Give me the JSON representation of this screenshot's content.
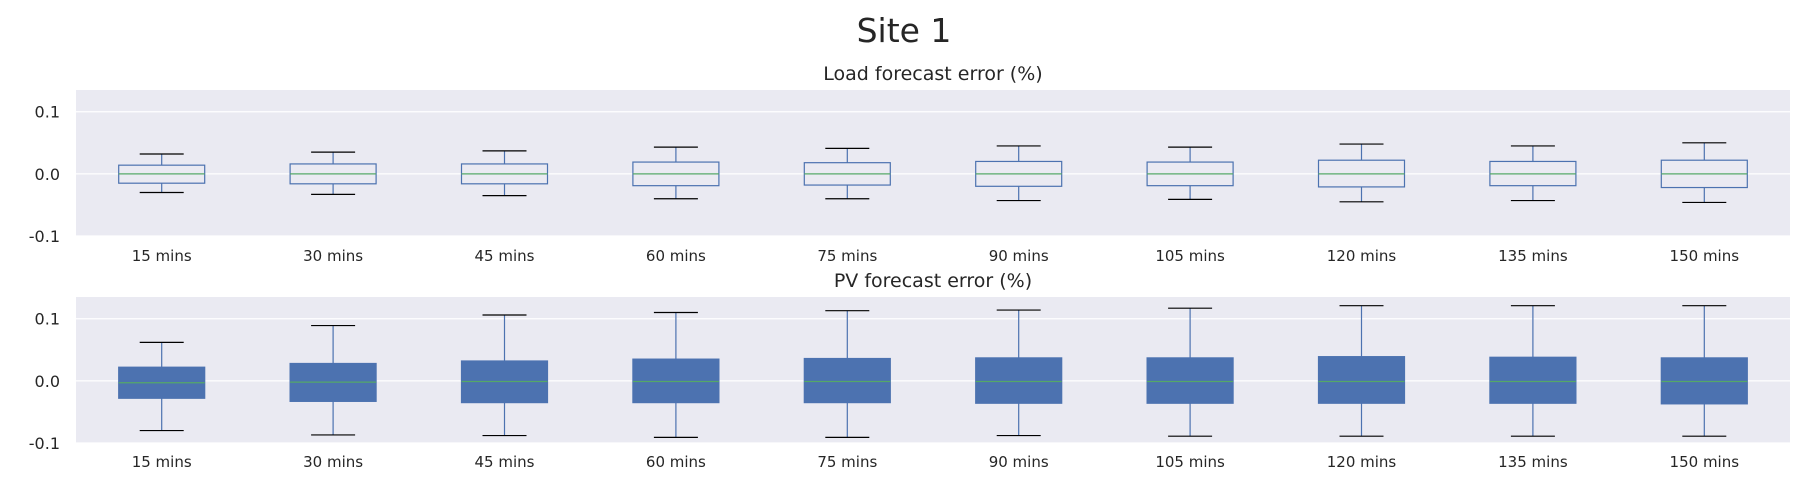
{
  "title": "Site 1",
  "colors": {
    "panel_bg": "#eaeaf2",
    "grid": "#ffffff",
    "box_edge": "#4c72b0",
    "box_fill": "#4c72b0",
    "median": "#55a868",
    "cap": "#000000"
  },
  "chart_data": [
    {
      "type": "box",
      "title": "Load forecast error (%)",
      "xlabel": "",
      "ylabel": "",
      "ylim": [
        -0.1,
        0.135
      ],
      "yticks": [
        "-0.1",
        "0.0",
        "0.1"
      ],
      "grid": true,
      "filled": false,
      "categories": [
        "15 mins",
        "30 mins",
        "45 mins",
        "60 mins",
        "75 mins",
        "90 mins",
        "105 mins",
        "120 mins",
        "135 mins",
        "150 mins"
      ],
      "boxes": [
        {
          "whisker_low": -0.03,
          "q1": -0.015,
          "median": 0.0,
          "q3": 0.014,
          "whisker_high": 0.032
        },
        {
          "whisker_low": -0.033,
          "q1": -0.016,
          "median": 0.0,
          "q3": 0.016,
          "whisker_high": 0.035
        },
        {
          "whisker_low": -0.035,
          "q1": -0.016,
          "median": 0.0,
          "q3": 0.016,
          "whisker_high": 0.037
        },
        {
          "whisker_low": -0.04,
          "q1": -0.019,
          "median": 0.0,
          "q3": 0.019,
          "whisker_high": 0.043
        },
        {
          "whisker_low": -0.04,
          "q1": -0.018,
          "median": 0.0,
          "q3": 0.018,
          "whisker_high": 0.041
        },
        {
          "whisker_low": -0.043,
          "q1": -0.02,
          "median": 0.0,
          "q3": 0.02,
          "whisker_high": 0.045
        },
        {
          "whisker_low": -0.041,
          "q1": -0.019,
          "median": 0.0,
          "q3": 0.019,
          "whisker_high": 0.043
        },
        {
          "whisker_low": -0.045,
          "q1": -0.021,
          "median": 0.0,
          "q3": 0.022,
          "whisker_high": 0.048
        },
        {
          "whisker_low": -0.043,
          "q1": -0.019,
          "median": 0.0,
          "q3": 0.02,
          "whisker_high": 0.045
        },
        {
          "whisker_low": -0.046,
          "q1": -0.022,
          "median": 0.0,
          "q3": 0.022,
          "whisker_high": 0.05
        }
      ]
    },
    {
      "type": "box",
      "title": "PV forecast error (%)",
      "xlabel": "",
      "ylabel": "",
      "ylim": [
        -0.1,
        0.135
      ],
      "yticks": [
        "-0.1",
        "0.0",
        "0.1"
      ],
      "grid": true,
      "filled": true,
      "categories": [
        "15 mins",
        "30 mins",
        "45 mins",
        "60 mins",
        "75 mins",
        "90 mins",
        "105 mins",
        "120 mins",
        "135 mins",
        "150 mins"
      ],
      "boxes": [
        {
          "whisker_low": -0.08,
          "q1": -0.028,
          "median": -0.003,
          "q3": 0.022,
          "whisker_high": 0.062
        },
        {
          "whisker_low": -0.087,
          "q1": -0.033,
          "median": -0.002,
          "q3": 0.028,
          "whisker_high": 0.089
        },
        {
          "whisker_low": -0.088,
          "q1": -0.035,
          "median": -0.001,
          "q3": 0.032,
          "whisker_high": 0.106
        },
        {
          "whisker_low": -0.091,
          "q1": -0.035,
          "median": -0.001,
          "q3": 0.035,
          "whisker_high": 0.11
        },
        {
          "whisker_low": -0.091,
          "q1": -0.035,
          "median": -0.001,
          "q3": 0.036,
          "whisker_high": 0.113
        },
        {
          "whisker_low": -0.088,
          "q1": -0.036,
          "median": -0.001,
          "q3": 0.037,
          "whisker_high": 0.114
        },
        {
          "whisker_low": -0.089,
          "q1": -0.036,
          "median": -0.001,
          "q3": 0.037,
          "whisker_high": 0.117
        },
        {
          "whisker_low": -0.089,
          "q1": -0.036,
          "median": -0.001,
          "q3": 0.039,
          "whisker_high": 0.121
        },
        {
          "whisker_low": -0.089,
          "q1": -0.036,
          "median": -0.001,
          "q3": 0.038,
          "whisker_high": 0.121
        },
        {
          "whisker_low": -0.089,
          "q1": -0.037,
          "median": -0.001,
          "q3": 0.037,
          "whisker_high": 0.121
        }
      ]
    }
  ]
}
